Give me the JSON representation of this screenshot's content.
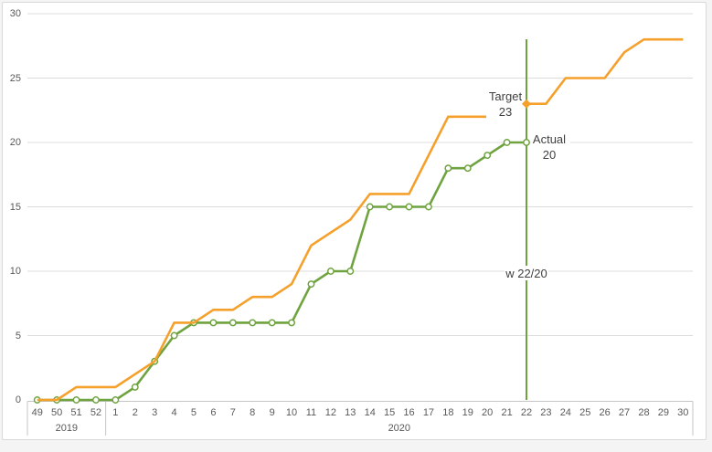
{
  "chart_data": {
    "type": "line",
    "title": "",
    "y_axis": {
      "min": 0,
      "max": 30,
      "tick_interval": 5,
      "ticks": [
        0,
        5,
        10,
        15,
        20,
        25,
        30
      ],
      "grid": true
    },
    "x_axis": {
      "labels": [
        "49",
        "50",
        "51",
        "52",
        "1",
        "2",
        "3",
        "4",
        "5",
        "6",
        "7",
        "8",
        "9",
        "10",
        "11",
        "12",
        "13",
        "14",
        "15",
        "16",
        "17",
        "18",
        "19",
        "20",
        "21",
        "22",
        "23",
        "24",
        "25",
        "26",
        "27",
        "28",
        "29",
        "30"
      ],
      "year_groups": [
        {
          "label": "2019",
          "span": 4
        },
        {
          "label": "2020",
          "span": 30
        }
      ]
    },
    "series": [
      {
        "name": "Target",
        "color": "#F5A02B",
        "marker": "none",
        "highlight_marker": {
          "shape": "diamond",
          "week": "22",
          "value": 23
        },
        "values": [
          0,
          0,
          1,
          1,
          1,
          2,
          3,
          6,
          6,
          7,
          7,
          8,
          8,
          9,
          12,
          13,
          14,
          16,
          16,
          16,
          19,
          22,
          22,
          22,
          23,
          23,
          23,
          25,
          25,
          25,
          27,
          28,
          28,
          28
        ]
      },
      {
        "name": "Actual",
        "color": "#6FA33F",
        "marker": "circle",
        "values": [
          0,
          0,
          0,
          0,
          0,
          1,
          3,
          5,
          6,
          6,
          6,
          6,
          6,
          6,
          9,
          10,
          10,
          15,
          15,
          15,
          15,
          18,
          18,
          19,
          20,
          20
        ]
      }
    ],
    "vertical_line": {
      "week": "22",
      "color": "#6FA33F"
    },
    "annotations": {
      "target_label_title": "Target",
      "target_label_value": "23",
      "actual_label_title": "Actual",
      "actual_label_value": "20",
      "current_week_label": "w 22/20"
    },
    "colors": {
      "target": "#F5A02B",
      "actual": "#6FA33F",
      "gridline": "#dcdcdc",
      "axis_line": "#c6c6c6",
      "tick_text": "#595959",
      "label_text": "#3f3f3f",
      "marker_fill": "#ffffff"
    }
  }
}
